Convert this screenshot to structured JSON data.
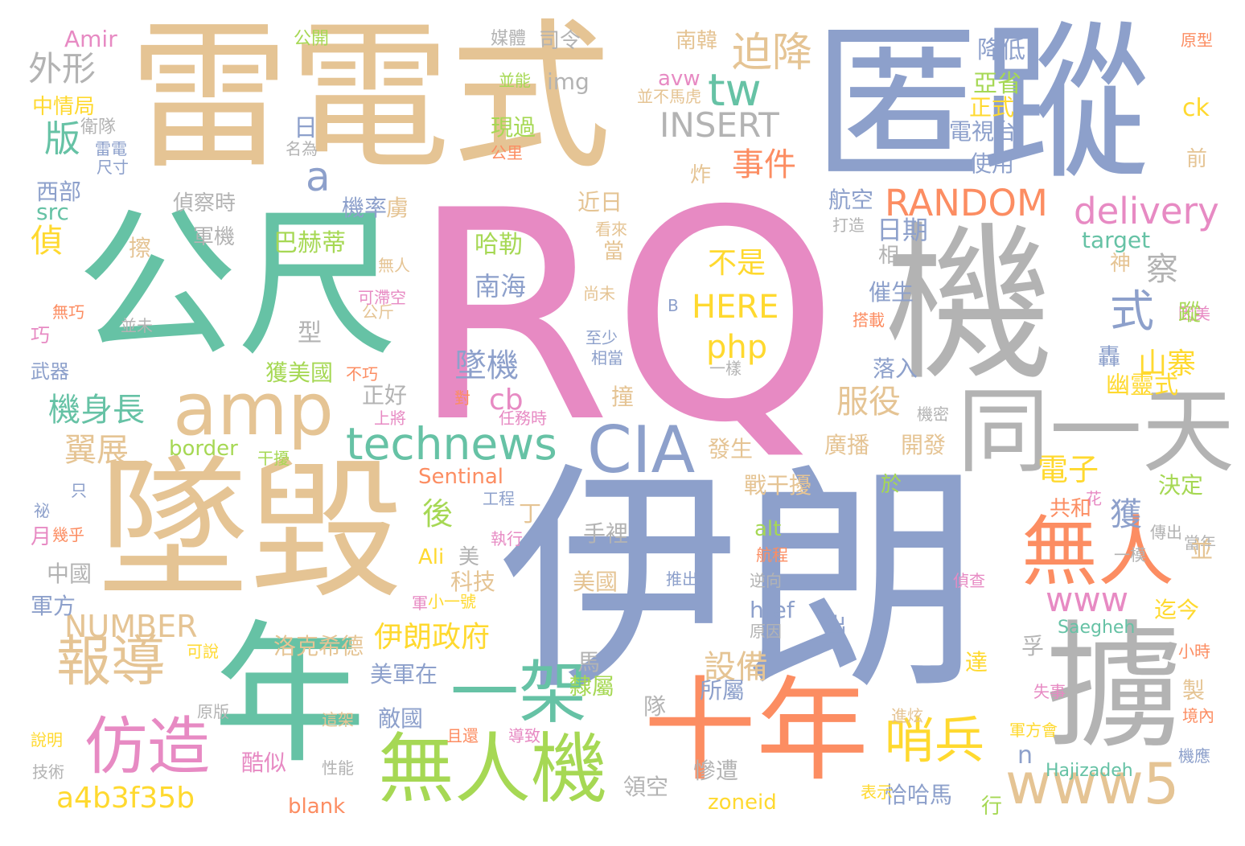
{
  "palette": {
    "pink": "#e78ac3",
    "blue": "#8da0cb",
    "tan": "#e5c494",
    "green": "#66c2a5",
    "gray": "#b3b3b3",
    "orange": "#fc8d62",
    "lime": "#a6d854",
    "yellow": "#ffd92f"
  },
  "words": [
    {
      "text": "RQ",
      "color": "pink"
    },
    {
      "text": "伊朗",
      "color": "blue"
    },
    {
      "text": "雷電式",
      "color": "tan"
    },
    {
      "text": "匿蹤",
      "color": "blue"
    },
    {
      "text": "公尺",
      "color": "green"
    },
    {
      "text": "機",
      "color": "gray"
    },
    {
      "text": "墜毀",
      "color": "tan"
    },
    {
      "text": "年",
      "color": "green"
    },
    {
      "text": "擄",
      "color": "gray"
    },
    {
      "text": "十年",
      "color": "orange"
    },
    {
      "text": "同一天",
      "color": "gray"
    },
    {
      "text": "無人機",
      "color": "lime"
    },
    {
      "text": "無人",
      "color": "orange"
    },
    {
      "text": "amp",
      "color": "tan"
    },
    {
      "text": "一架",
      "color": "green"
    },
    {
      "text": "仿造",
      "color": "pink"
    },
    {
      "text": "www5",
      "color": "tan"
    },
    {
      "text": "technews",
      "color": "green"
    },
    {
      "text": "CIA",
      "color": "blue"
    },
    {
      "text": "哨兵",
      "color": "yellow"
    },
    {
      "text": "報導",
      "color": "tan"
    },
    {
      "text": "迫降",
      "color": "tan"
    },
    {
      "text": "tw",
      "color": "green"
    },
    {
      "text": "a",
      "color": "blue"
    },
    {
      "text": "式",
      "color": "blue"
    },
    {
      "text": "RANDOM",
      "color": "orange"
    },
    {
      "text": "delivery",
      "color": "pink"
    },
    {
      "text": "INSERT",
      "color": "gray"
    },
    {
      "text": "事件",
      "color": "orange"
    },
    {
      "text": "外形",
      "color": "gray"
    },
    {
      "text": "版",
      "color": "green"
    },
    {
      "text": "偵",
      "color": "yellow"
    },
    {
      "text": "機身長",
      "color": "green"
    },
    {
      "text": "翼展",
      "color": "tan"
    },
    {
      "text": "a4b3f35b",
      "color": "yellow"
    },
    {
      "text": "NUMBER",
      "color": "tan"
    },
    {
      "text": "墜機",
      "color": "blue"
    },
    {
      "text": "cb",
      "color": "pink"
    },
    {
      "text": "www",
      "color": "pink"
    },
    {
      "text": "伊朗政府",
      "color": "yellow"
    },
    {
      "text": "服役",
      "color": "tan"
    },
    {
      "text": "山寨",
      "color": "yellow"
    },
    {
      "text": "電子",
      "color": "yellow"
    },
    {
      "text": "後",
      "color": "lime"
    },
    {
      "text": "獲",
      "color": "blue"
    },
    {
      "text": "設備",
      "color": "tan"
    },
    {
      "text": "不是",
      "color": "yellow"
    },
    {
      "text": "HERE",
      "color": "yellow"
    },
    {
      "text": "php",
      "color": "yellow"
    },
    {
      "text": "巴赫蒂",
      "color": "lime"
    },
    {
      "text": "南海",
      "color": "blue"
    },
    {
      "text": "哈勒",
      "color": "lime"
    },
    {
      "text": "察",
      "color": "gray"
    },
    {
      "text": "日期",
      "color": "blue"
    },
    {
      "text": "target",
      "color": "green"
    },
    {
      "text": "n",
      "color": "blue"
    },
    {
      "text": "Amir",
      "color": "pink"
    },
    {
      "text": "公開",
      "color": "lime"
    },
    {
      "text": "媒體",
      "color": "gray"
    },
    {
      "text": "司令",
      "color": "gray"
    },
    {
      "text": "南韓",
      "color": "tan"
    },
    {
      "text": "降低",
      "color": "blue"
    },
    {
      "text": "原型",
      "color": "orange"
    },
    {
      "text": "中情局",
      "color": "yellow"
    },
    {
      "text": "衛隊",
      "color": "gray"
    },
    {
      "text": "雷電",
      "color": "blue"
    },
    {
      "text": "尺寸",
      "color": "blue"
    },
    {
      "text": "西部",
      "color": "blue"
    },
    {
      "text": "src",
      "color": "green"
    },
    {
      "text": "日",
      "color": "blue"
    },
    {
      "text": "名為",
      "color": "gray"
    },
    {
      "text": "偵察時",
      "color": "gray"
    },
    {
      "text": "軍機",
      "color": "gray"
    },
    {
      "text": "擦",
      "color": "tan"
    },
    {
      "text": "機率",
      "color": "blue"
    },
    {
      "text": "虜",
      "color": "tan"
    },
    {
      "text": "近日",
      "color": "tan"
    },
    {
      "text": "當",
      "color": "tan"
    },
    {
      "text": "img",
      "color": "gray"
    },
    {
      "text": "avw",
      "color": "pink"
    },
    {
      "text": "並不馬虎",
      "color": "tan"
    },
    {
      "text": "並能",
      "color": "lime"
    },
    {
      "text": "現過",
      "color": "lime"
    },
    {
      "text": "公里",
      "color": "orange"
    },
    {
      "text": "炸",
      "color": "tan"
    },
    {
      "text": "亞省",
      "color": "lime"
    },
    {
      "text": "正式",
      "color": "yellow"
    },
    {
      "text": "電視台",
      "color": "blue"
    },
    {
      "text": "使用",
      "color": "blue"
    },
    {
      "text": "航空",
      "color": "blue"
    },
    {
      "text": "打造",
      "color": "gray"
    },
    {
      "text": "ck",
      "color": "yellow"
    },
    {
      "text": "前",
      "color": "tan"
    },
    {
      "text": "神",
      "color": "tan"
    },
    {
      "text": "因美",
      "color": "pink"
    },
    {
      "text": "看來",
      "color": "tan"
    },
    {
      "text": "無人",
      "color": "tan"
    },
    {
      "text": "可滯空",
      "color": "pink"
    },
    {
      "text": "公斤",
      "color": "tan"
    },
    {
      "text": "無巧",
      "color": "orange"
    },
    {
      "text": "並未",
      "color": "gray"
    },
    {
      "text": "巧",
      "color": "pink"
    },
    {
      "text": "型",
      "color": "gray"
    },
    {
      "text": "武器",
      "color": "blue"
    },
    {
      "text": "獲美國",
      "color": "lime"
    },
    {
      "text": "不巧",
      "color": "orange"
    },
    {
      "text": "正好",
      "color": "gray"
    },
    {
      "text": "B",
      "color": "blue"
    },
    {
      "text": "尚未",
      "color": "tan"
    },
    {
      "text": "至少",
      "color": "blue"
    },
    {
      "text": "相當",
      "color": "blue"
    },
    {
      "text": "一樣",
      "color": "gray"
    },
    {
      "text": "相",
      "color": "gray"
    },
    {
      "text": "催生",
      "color": "blue"
    },
    {
      "text": "搭載",
      "color": "orange"
    },
    {
      "text": "蹤",
      "color": "lime"
    },
    {
      "text": "轟",
      "color": "blue"
    },
    {
      "text": "落入",
      "color": "blue"
    },
    {
      "text": "幽靈式",
      "color": "yellow"
    },
    {
      "text": "機密",
      "color": "gray"
    },
    {
      "text": "撞",
      "color": "tan"
    },
    {
      "text": "上將",
      "color": "pink"
    },
    {
      "text": "對",
      "color": "orange"
    },
    {
      "text": "任務時",
      "color": "pink"
    },
    {
      "text": "border",
      "color": "lime"
    },
    {
      "text": "干擾",
      "color": "lime"
    },
    {
      "text": "發生",
      "color": "tan"
    },
    {
      "text": "廣播",
      "color": "tan"
    },
    {
      "text": "開發",
      "color": "tan"
    },
    {
      "text": "戰干擾",
      "color": "tan"
    },
    {
      "text": "於",
      "color": "lime"
    },
    {
      "text": "決定",
      "color": "lime"
    },
    {
      "text": "花",
      "color": "pink"
    },
    {
      "text": "共和",
      "color": "orange"
    },
    {
      "text": "傳出",
      "color": "gray"
    },
    {
      "text": "Sentinal",
      "color": "orange"
    },
    {
      "text": "工程",
      "color": "blue"
    },
    {
      "text": "丁",
      "color": "tan"
    },
    {
      "text": "只",
      "color": "blue"
    },
    {
      "text": "祕",
      "color": "blue"
    },
    {
      "text": "月",
      "color": "pink"
    },
    {
      "text": "幾乎",
      "color": "orange"
    },
    {
      "text": "手裡",
      "color": "gray"
    },
    {
      "text": "執行",
      "color": "pink"
    },
    {
      "text": "alt",
      "color": "lime"
    },
    {
      "text": "當年",
      "color": "gray"
    },
    {
      "text": "並",
      "color": "tan"
    },
    {
      "text": "美",
      "color": "gray"
    },
    {
      "text": "Ali",
      "color": "yellow"
    },
    {
      "text": "航程",
      "color": "orange"
    },
    {
      "text": "一模",
      "color": "gray"
    },
    {
      "text": "中國",
      "color": "gray"
    },
    {
      "text": "科技",
      "color": "tan"
    },
    {
      "text": "軍方",
      "color": "blue"
    },
    {
      "text": "美國",
      "color": "tan"
    },
    {
      "text": "推出",
      "color": "blue"
    },
    {
      "text": "逆向",
      "color": "gray"
    },
    {
      "text": "偵查",
      "color": "pink"
    },
    {
      "text": "小一號",
      "color": "yellow"
    },
    {
      "text": "軍",
      "color": "pink"
    },
    {
      "text": "href",
      "color": "blue"
    },
    {
      "text": "出",
      "color": "blue"
    },
    {
      "text": "迄今",
      "color": "yellow"
    },
    {
      "text": "洛克希德",
      "color": "tan"
    },
    {
      "text": "原因",
      "color": "gray"
    },
    {
      "text": "Saegheh",
      "color": "green"
    },
    {
      "text": "美軍在",
      "color": "blue"
    },
    {
      "text": "孚",
      "color": "gray"
    },
    {
      "text": "可說",
      "color": "yellow"
    },
    {
      "text": "馬",
      "color": "gray"
    },
    {
      "text": "達",
      "color": "yellow"
    },
    {
      "text": "小時",
      "color": "orange"
    },
    {
      "text": "隸屬",
      "color": "lime"
    },
    {
      "text": "製",
      "color": "tan"
    },
    {
      "text": "隊",
      "color": "gray"
    },
    {
      "text": "所屬",
      "color": "blue"
    },
    {
      "text": "失事",
      "color": "pink"
    },
    {
      "text": "原版",
      "color": "gray"
    },
    {
      "text": "敵國",
      "color": "blue"
    },
    {
      "text": "進炫",
      "color": "tan"
    },
    {
      "text": "境內",
      "color": "orange"
    },
    {
      "text": "說明",
      "color": "yellow"
    },
    {
      "text": "這架",
      "color": "tan"
    },
    {
      "text": "且還",
      "color": "orange"
    },
    {
      "text": "導致",
      "color": "pink"
    },
    {
      "text": "軍方會",
      "color": "yellow"
    },
    {
      "text": "機應",
      "color": "blue"
    },
    {
      "text": "酷似",
      "color": "pink"
    },
    {
      "text": "技術",
      "color": "gray"
    },
    {
      "text": "性能",
      "color": "gray"
    },
    {
      "text": "慘遭",
      "color": "gray"
    },
    {
      "text": "Hajizadeh",
      "color": "green"
    },
    {
      "text": "領空",
      "color": "gray"
    },
    {
      "text": "恰哈馬",
      "color": "blue"
    },
    {
      "text": "blank",
      "color": "orange"
    },
    {
      "text": "zoneid",
      "color": "yellow"
    },
    {
      "text": "行",
      "color": "lime"
    },
    {
      "text": "表示",
      "color": "yellow"
    }
  ]
}
